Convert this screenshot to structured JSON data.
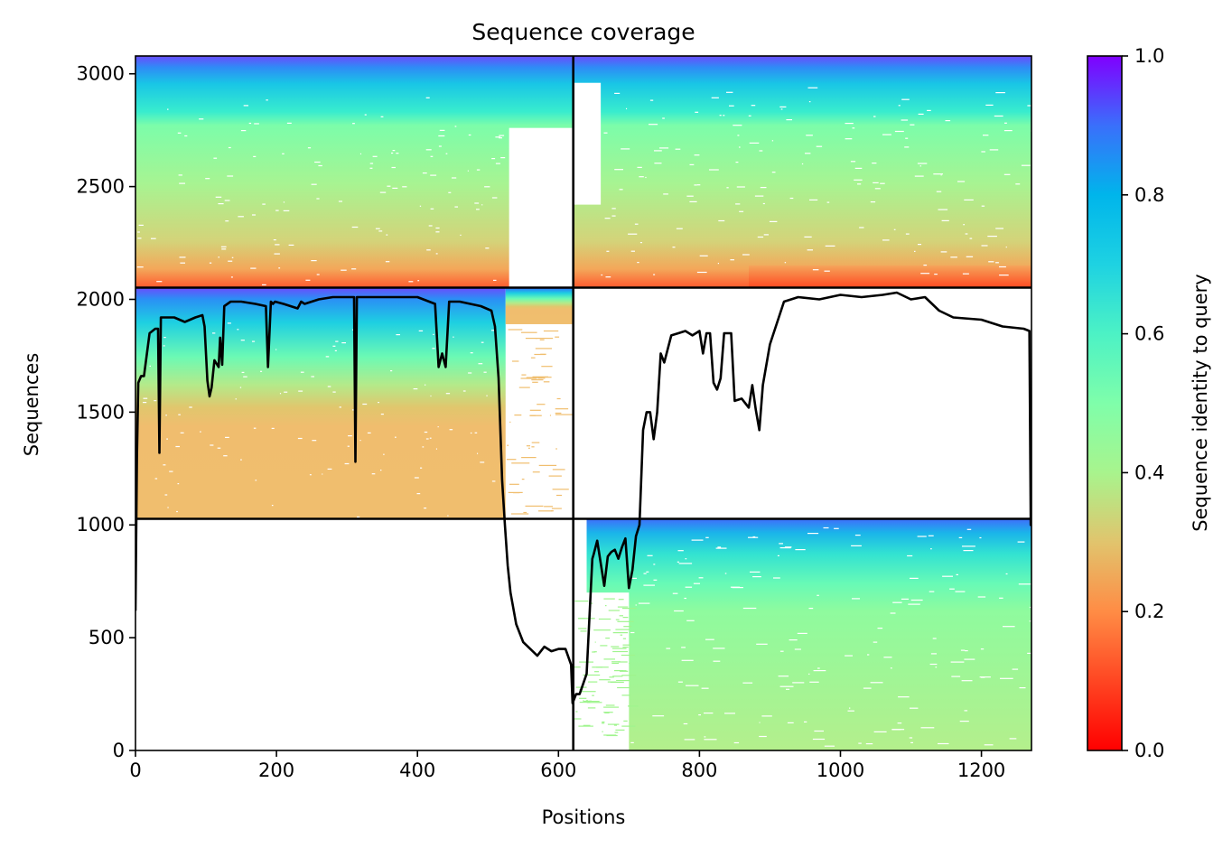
{
  "chart_data": {
    "type": "heatmap",
    "title": "Sequence coverage",
    "xlabel": "Positions",
    "ylabel": "Sequences",
    "colorbar_label": "Sequence identity to query",
    "colormap": "rainbow",
    "x_range": [
      0,
      1271
    ],
    "y_range": [
      0,
      3079
    ],
    "x_ticks": [
      0,
      200,
      400,
      600,
      800,
      1000,
      1200
    ],
    "y_ticks": [
      0,
      500,
      1000,
      1500,
      2000,
      2500,
      3000
    ],
    "colorbar_range": [
      0,
      1
    ],
    "colorbar_ticks": [
      "0.0",
      "0.2",
      "0.4",
      "0.6",
      "0.8",
      "1.0"
    ],
    "grid": false,
    "chain_boundary_x": 621,
    "row_block_boundaries_y": [
      1027,
      2052
    ],
    "blocks": [
      {
        "name": "rows 0-1027",
        "covered_x": [
          621,
          1271
        ],
        "identity_top": 0.9,
        "identity_bottom": 0.4
      },
      {
        "name": "rows 1027-2052",
        "covered_x": [
          0,
          600
        ],
        "identity_top": 0.9,
        "identity_bottom": 0.25
      },
      {
        "name": "rows 2052-3079",
        "covered_x": [
          0,
          1271
        ],
        "identity_top": 0.95,
        "identity_bottom": 0.1
      }
    ],
    "coverage_line": {
      "color": "#000000",
      "x": [
        0,
        2,
        4,
        8,
        12,
        20,
        28,
        32,
        34,
        36,
        40,
        45,
        55,
        70,
        85,
        95,
        98,
        102,
        105,
        108,
        112,
        118,
        120,
        123,
        126,
        135,
        150,
        170,
        185,
        188,
        192,
        195,
        198,
        210,
        230,
        235,
        240,
        260,
        280,
        300,
        310,
        312,
        314,
        316,
        330,
        360,
        400,
        425,
        430,
        435,
        440,
        445,
        460,
        490,
        505,
        510,
        515,
        520,
        524,
        528,
        532,
        540,
        550,
        560,
        570,
        580,
        590,
        600,
        610,
        618,
        620,
        625,
        630,
        640,
        648,
        650,
        655,
        665,
        670,
        675,
        680,
        685,
        690,
        695,
        700,
        705,
        710,
        715,
        720,
        725,
        730,
        735,
        740,
        745,
        750,
        760,
        770,
        780,
        790,
        800,
        805,
        810,
        815,
        820,
        825,
        830,
        835,
        840,
        845,
        850,
        860,
        870,
        875,
        880,
        885,
        890,
        900,
        920,
        940,
        970,
        1000,
        1030,
        1060,
        1080,
        1100,
        1120,
        1140,
        1160,
        1200,
        1230,
        1260,
        1268,
        1270,
        1271
      ],
      "y": [
        620,
        1300,
        1630,
        1660,
        1660,
        1850,
        1870,
        1870,
        1320,
        1920,
        1920,
        1920,
        1920,
        1900,
        1920,
        1930,
        1880,
        1640,
        1570,
        1610,
        1730,
        1700,
        1830,
        1710,
        1970,
        1990,
        1990,
        1980,
        1970,
        1700,
        1990,
        1980,
        1990,
        1980,
        1960,
        1990,
        1980,
        2000,
        2010,
        2010,
        2010,
        1280,
        2010,
        2010,
        2010,
        2010,
        2010,
        1980,
        1700,
        1760,
        1700,
        1990,
        1990,
        1970,
        1950,
        1880,
        1650,
        1200,
        1000,
        820,
        700,
        560,
        480,
        450,
        420,
        460,
        440,
        450,
        450,
        380,
        210,
        250,
        250,
        340,
        850,
        870,
        930,
        730,
        860,
        880,
        890,
        850,
        900,
        940,
        720,
        800,
        950,
        1000,
        1420,
        1500,
        1500,
        1380,
        1500,
        1760,
        1720,
        1840,
        1850,
        1860,
        1840,
        1860,
        1760,
        1850,
        1850,
        1630,
        1600,
        1650,
        1850,
        1850,
        1850,
        1550,
        1560,
        1520,
        1620,
        1510,
        1420,
        1620,
        1800,
        1990,
        2010,
        2000,
        2020,
        2010,
        2020,
        2030,
        2000,
        2010,
        1950,
        1920,
        1910,
        1880,
        1870,
        1860,
        1000,
        1000
      ]
    }
  }
}
